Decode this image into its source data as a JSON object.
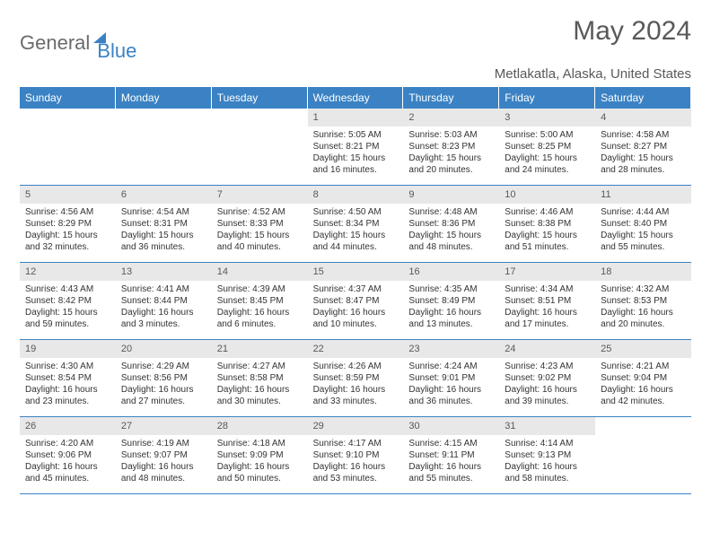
{
  "logo": {
    "part1": "General",
    "part2": "Blue"
  },
  "title": "May 2024",
  "location": "Metlakatla, Alaska, United States",
  "dow": [
    "Sunday",
    "Monday",
    "Tuesday",
    "Wednesday",
    "Thursday",
    "Friday",
    "Saturday"
  ],
  "colors": {
    "accent": "#3b82c4",
    "text": "#333333",
    "muted": "#595959",
    "daybg": "#e8e8e8",
    "background": "#ffffff"
  },
  "firstDayOffset": 3,
  "days": [
    {
      "n": "1",
      "sunrise": "5:05 AM",
      "sunset": "8:21 PM",
      "daylight": "15 hours and 16 minutes."
    },
    {
      "n": "2",
      "sunrise": "5:03 AM",
      "sunset": "8:23 PM",
      "daylight": "15 hours and 20 minutes."
    },
    {
      "n": "3",
      "sunrise": "5:00 AM",
      "sunset": "8:25 PM",
      "daylight": "15 hours and 24 minutes."
    },
    {
      "n": "4",
      "sunrise": "4:58 AM",
      "sunset": "8:27 PM",
      "daylight": "15 hours and 28 minutes."
    },
    {
      "n": "5",
      "sunrise": "4:56 AM",
      "sunset": "8:29 PM",
      "daylight": "15 hours and 32 minutes."
    },
    {
      "n": "6",
      "sunrise": "4:54 AM",
      "sunset": "8:31 PM",
      "daylight": "15 hours and 36 minutes."
    },
    {
      "n": "7",
      "sunrise": "4:52 AM",
      "sunset": "8:33 PM",
      "daylight": "15 hours and 40 minutes."
    },
    {
      "n": "8",
      "sunrise": "4:50 AM",
      "sunset": "8:34 PM",
      "daylight": "15 hours and 44 minutes."
    },
    {
      "n": "9",
      "sunrise": "4:48 AM",
      "sunset": "8:36 PM",
      "daylight": "15 hours and 48 minutes."
    },
    {
      "n": "10",
      "sunrise": "4:46 AM",
      "sunset": "8:38 PM",
      "daylight": "15 hours and 51 minutes."
    },
    {
      "n": "11",
      "sunrise": "4:44 AM",
      "sunset": "8:40 PM",
      "daylight": "15 hours and 55 minutes."
    },
    {
      "n": "12",
      "sunrise": "4:43 AM",
      "sunset": "8:42 PM",
      "daylight": "15 hours and 59 minutes."
    },
    {
      "n": "13",
      "sunrise": "4:41 AM",
      "sunset": "8:44 PM",
      "daylight": "16 hours and 3 minutes."
    },
    {
      "n": "14",
      "sunrise": "4:39 AM",
      "sunset": "8:45 PM",
      "daylight": "16 hours and 6 minutes."
    },
    {
      "n": "15",
      "sunrise": "4:37 AM",
      "sunset": "8:47 PM",
      "daylight": "16 hours and 10 minutes."
    },
    {
      "n": "16",
      "sunrise": "4:35 AM",
      "sunset": "8:49 PM",
      "daylight": "16 hours and 13 minutes."
    },
    {
      "n": "17",
      "sunrise": "4:34 AM",
      "sunset": "8:51 PM",
      "daylight": "16 hours and 17 minutes."
    },
    {
      "n": "18",
      "sunrise": "4:32 AM",
      "sunset": "8:53 PM",
      "daylight": "16 hours and 20 minutes."
    },
    {
      "n": "19",
      "sunrise": "4:30 AM",
      "sunset": "8:54 PM",
      "daylight": "16 hours and 23 minutes."
    },
    {
      "n": "20",
      "sunrise": "4:29 AM",
      "sunset": "8:56 PM",
      "daylight": "16 hours and 27 minutes."
    },
    {
      "n": "21",
      "sunrise": "4:27 AM",
      "sunset": "8:58 PM",
      "daylight": "16 hours and 30 minutes."
    },
    {
      "n": "22",
      "sunrise": "4:26 AM",
      "sunset": "8:59 PM",
      "daylight": "16 hours and 33 minutes."
    },
    {
      "n": "23",
      "sunrise": "4:24 AM",
      "sunset": "9:01 PM",
      "daylight": "16 hours and 36 minutes."
    },
    {
      "n": "24",
      "sunrise": "4:23 AM",
      "sunset": "9:02 PM",
      "daylight": "16 hours and 39 minutes."
    },
    {
      "n": "25",
      "sunrise": "4:21 AM",
      "sunset": "9:04 PM",
      "daylight": "16 hours and 42 minutes."
    },
    {
      "n": "26",
      "sunrise": "4:20 AM",
      "sunset": "9:06 PM",
      "daylight": "16 hours and 45 minutes."
    },
    {
      "n": "27",
      "sunrise": "4:19 AM",
      "sunset": "9:07 PM",
      "daylight": "16 hours and 48 minutes."
    },
    {
      "n": "28",
      "sunrise": "4:18 AM",
      "sunset": "9:09 PM",
      "daylight": "16 hours and 50 minutes."
    },
    {
      "n": "29",
      "sunrise": "4:17 AM",
      "sunset": "9:10 PM",
      "daylight": "16 hours and 53 minutes."
    },
    {
      "n": "30",
      "sunrise": "4:15 AM",
      "sunset": "9:11 PM",
      "daylight": "16 hours and 55 minutes."
    },
    {
      "n": "31",
      "sunrise": "4:14 AM",
      "sunset": "9:13 PM",
      "daylight": "16 hours and 58 minutes."
    }
  ],
  "labels": {
    "sunrise": "Sunrise:",
    "sunset": "Sunset:",
    "daylight": "Daylight:"
  }
}
